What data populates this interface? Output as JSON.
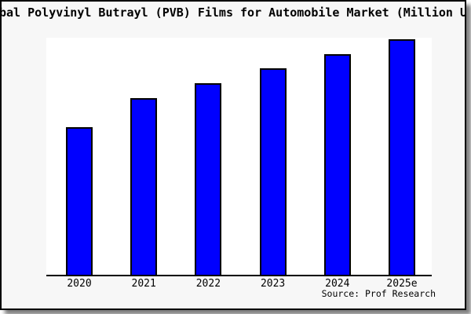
{
  "figure": {
    "background": "#F7F7F7",
    "plot_background": "#FFFFFF",
    "border_color": "#000000",
    "shadow_color": "#808080"
  },
  "chart_data": {
    "type": "bar",
    "title": "Global Polyvinyl Butrayl (PVB) Films for Automobile Market (Million US$)",
    "categories": [
      "2020",
      "2021",
      "2022",
      "2023",
      "2024",
      "2025e"
    ],
    "values": [
      62.7,
      75.0,
      81.3,
      87.7,
      93.7,
      100.0
    ],
    "value_scale": "relative heights; y-axis has no tick labels (2025e = 100)",
    "xlabel": "",
    "ylabel": "",
    "ylim": [
      0,
      105
    ],
    "grid": false,
    "legend_position": "none",
    "bar_color": "#0000FF",
    "bar_border_color": "#000000",
    "source": "Source: Prof Research"
  }
}
